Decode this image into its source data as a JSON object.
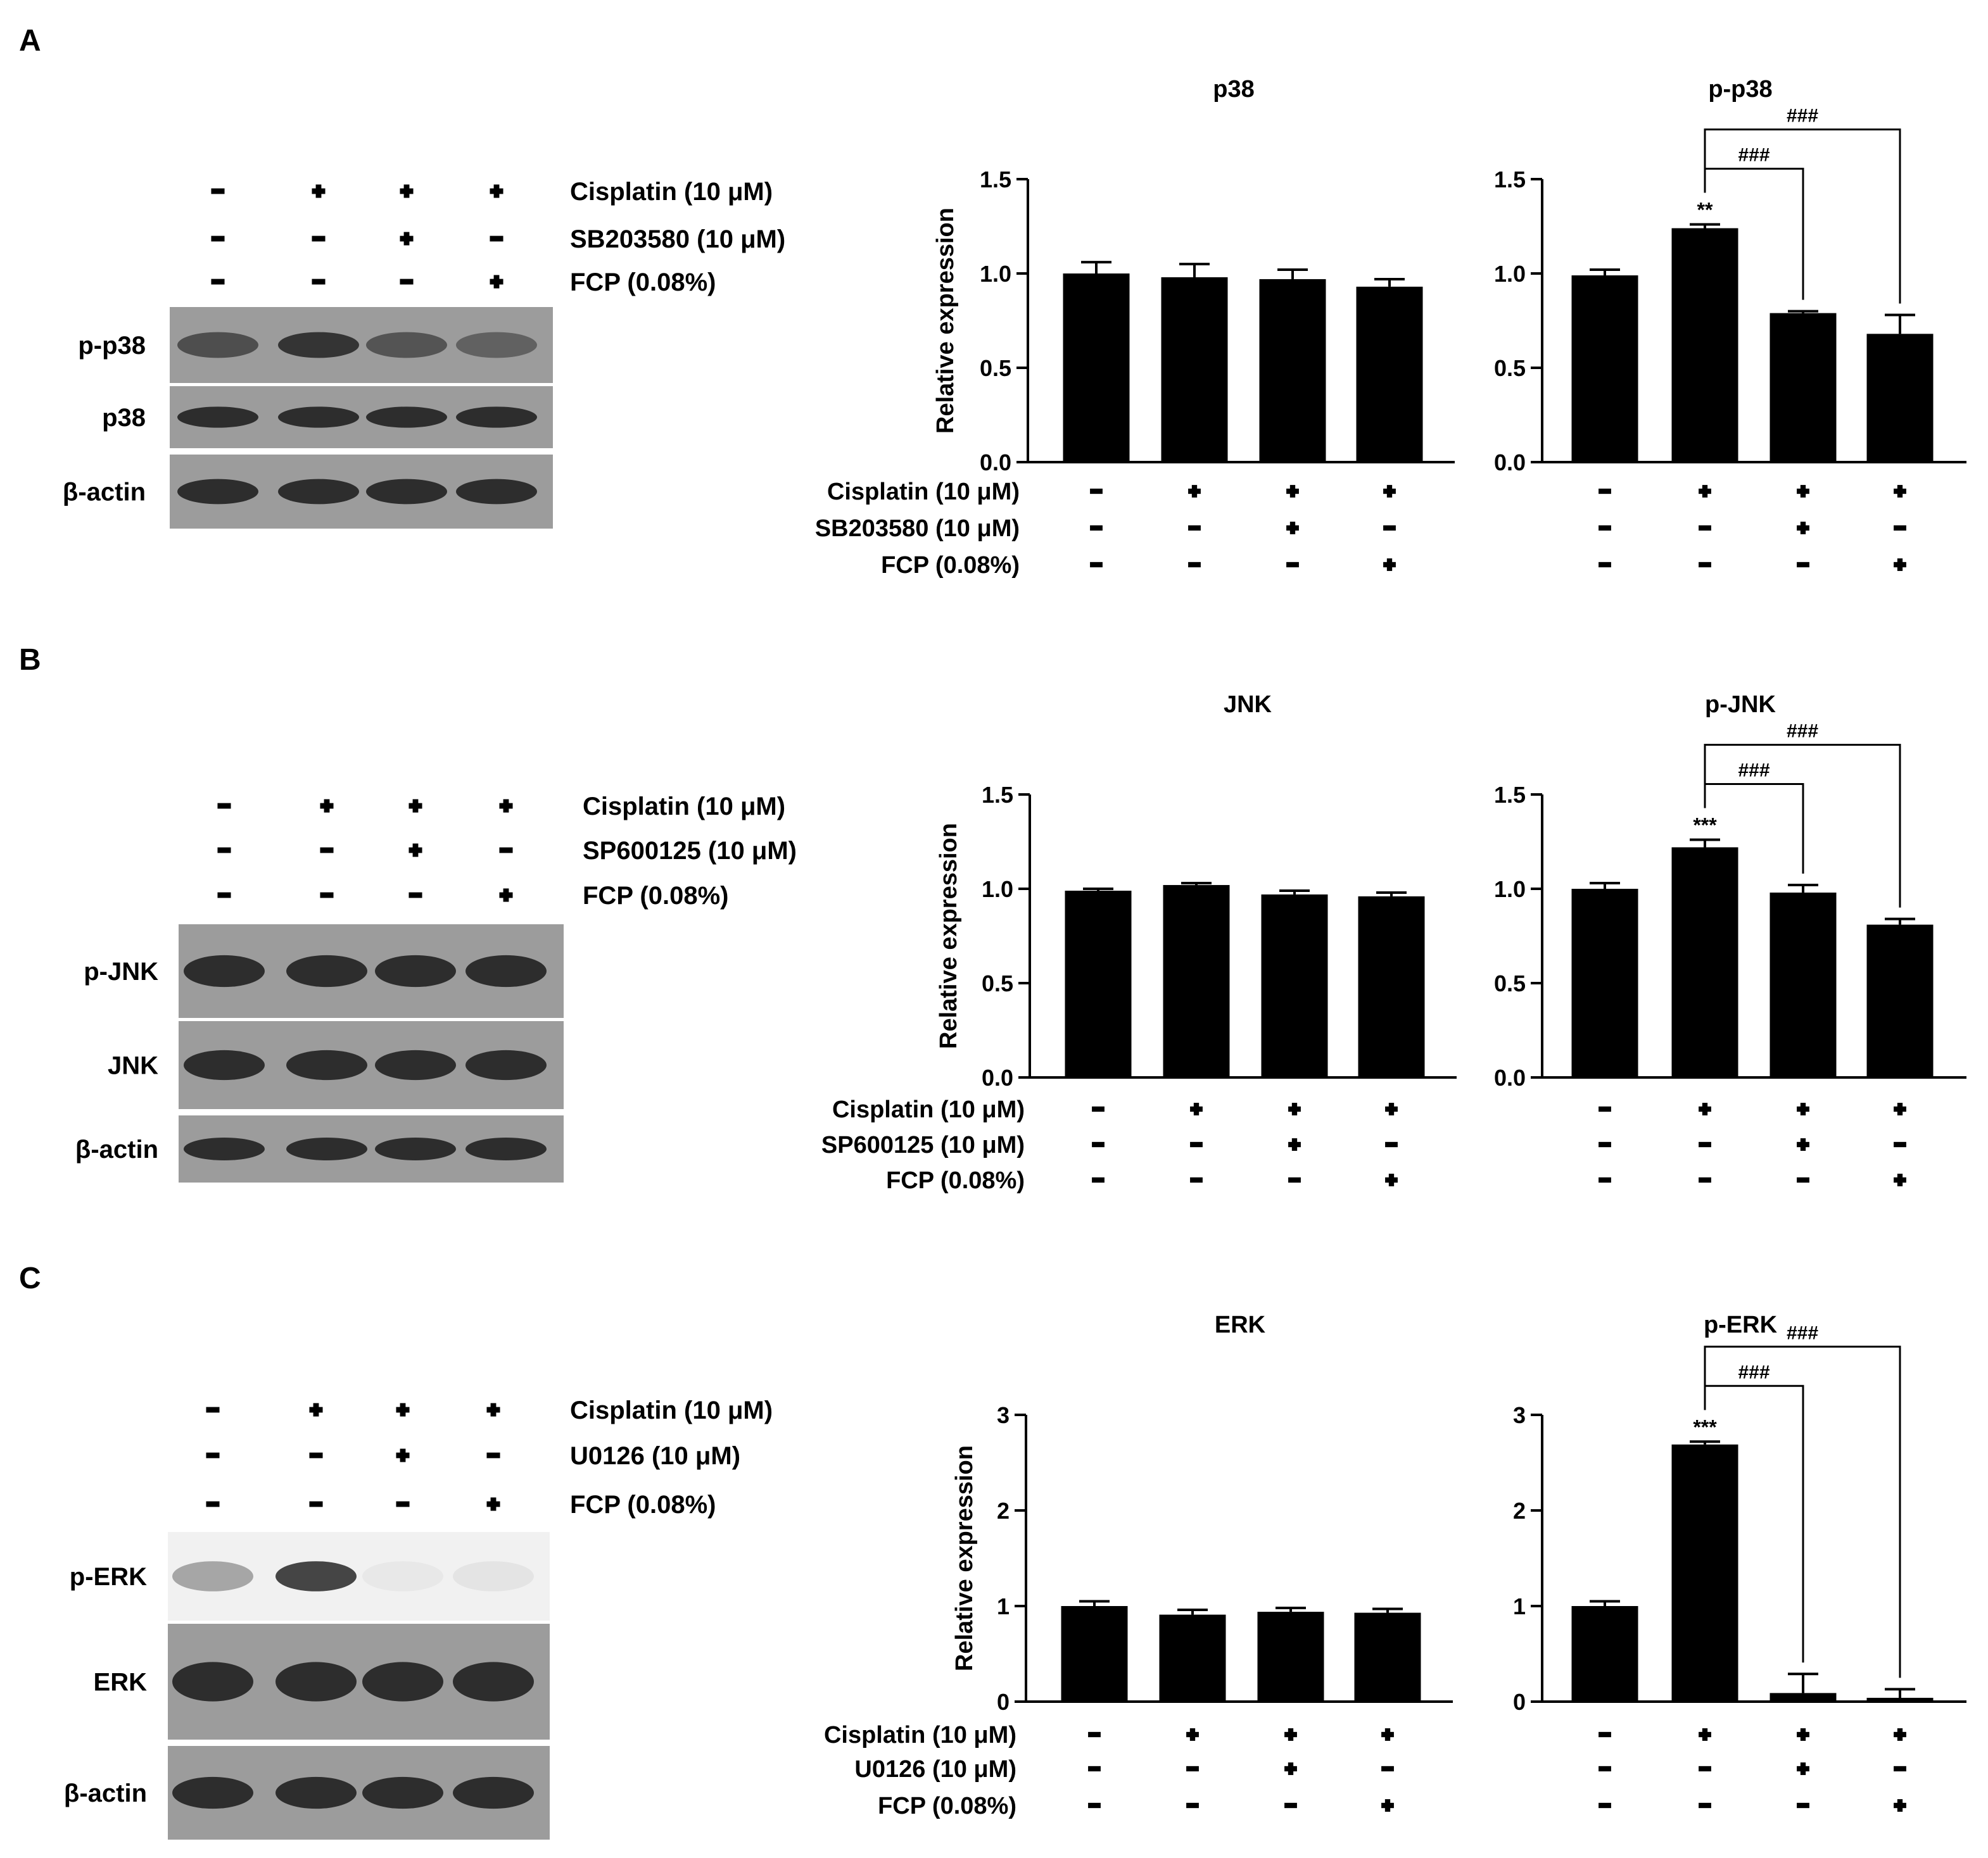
{
  "panels": [
    {
      "letter": "A",
      "blot_labels": [
        "p-p38",
        "p38",
        "β-actin"
      ],
      "treatments": [
        {
          "label": "Cisplatin (10 μM)",
          "signs": [
            "−",
            "+",
            "+",
            "+"
          ]
        },
        {
          "label": "SB203580 (10 μM)",
          "signs": [
            "−",
            "−",
            "+",
            "−"
          ]
        },
        {
          "label": "FCP (0.08%)",
          "signs": [
            "−",
            "−",
            "−",
            "+"
          ]
        }
      ]
    },
    {
      "letter": "B",
      "blot_labels": [
        "p-JNK",
        "JNK",
        "β-actin"
      ],
      "treatments": [
        {
          "label": "Cisplatin (10 μM)",
          "signs": [
            "−",
            "+",
            "+",
            "+"
          ]
        },
        {
          "label": "SP600125 (10 μM)",
          "signs": [
            "−",
            "−",
            "+",
            "−"
          ]
        },
        {
          "label": "FCP (0.08%)",
          "signs": [
            "−",
            "−",
            "−",
            "+"
          ]
        }
      ]
    },
    {
      "letter": "C",
      "blot_labels": [
        "p-ERK",
        "ERK",
        "β-actin"
      ],
      "treatments": [
        {
          "label": "Cisplatin (10 μM)",
          "signs": [
            "−",
            "+",
            "+",
            "+"
          ]
        },
        {
          "label": "U0126 (10 μM)",
          "signs": [
            "−",
            "−",
            "+",
            "−"
          ]
        },
        {
          "label": "FCP (0.08%)",
          "signs": [
            "−",
            "−",
            "−",
            "+"
          ]
        }
      ]
    }
  ],
  "chart_data": [
    {
      "type": "bar",
      "panel": "A",
      "title": "p38",
      "ylabel": "Relative expression",
      "ylim": [
        0,
        1.5
      ],
      "yticks": [
        "0.0",
        "0.5",
        "1.0",
        "1.5"
      ],
      "values": [
        1.0,
        0.98,
        0.97,
        0.93
      ],
      "errors": [
        0.06,
        0.07,
        0.05,
        0.04
      ],
      "sig": [
        "",
        "",
        "",
        ""
      ],
      "brackets": []
    },
    {
      "type": "bar",
      "panel": "A",
      "title": "p-p38",
      "ylabel": "",
      "ylim": [
        0,
        1.5
      ],
      "yticks": [
        "0.0",
        "0.5",
        "1.0",
        "1.5"
      ],
      "values": [
        0.99,
        1.24,
        0.79,
        0.68
      ],
      "errors": [
        0.03,
        0.02,
        0.01,
        0.1
      ],
      "sig": [
        "",
        "**",
        "",
        ""
      ],
      "brackets": [
        "###",
        "###"
      ]
    },
    {
      "type": "bar",
      "panel": "B",
      "title": "JNK",
      "ylabel": "Relative expression",
      "ylim": [
        0,
        1.5
      ],
      "yticks": [
        "0.0",
        "0.5",
        "1.0",
        "1.5"
      ],
      "values": [
        0.99,
        1.02,
        0.97,
        0.96
      ],
      "errors": [
        0.01,
        0.01,
        0.02,
        0.02
      ],
      "sig": [
        "",
        "",
        "",
        ""
      ],
      "brackets": []
    },
    {
      "type": "bar",
      "panel": "B",
      "title": "p-JNK",
      "ylabel": "",
      "ylim": [
        0,
        1.5
      ],
      "yticks": [
        "0.0",
        "0.5",
        "1.0",
        "1.5"
      ],
      "values": [
        1.0,
        1.22,
        0.98,
        0.81
      ],
      "errors": [
        0.03,
        0.04,
        0.04,
        0.03
      ],
      "sig": [
        "",
        "***",
        "",
        ""
      ],
      "brackets": [
        "###",
        "###"
      ]
    },
    {
      "type": "bar",
      "panel": "C",
      "title": "ERK",
      "ylabel": "Relative expression",
      "ylim": [
        0,
        3
      ],
      "yticks": [
        "0",
        "1",
        "2",
        "3"
      ],
      "values": [
        1.0,
        0.91,
        0.94,
        0.93
      ],
      "errors": [
        0.05,
        0.05,
        0.04,
        0.04
      ],
      "sig": [
        "",
        "",
        "",
        ""
      ],
      "brackets": []
    },
    {
      "type": "bar",
      "panel": "C",
      "title": "p-ERK",
      "ylabel": "",
      "ylim": [
        0,
        3
      ],
      "yticks": [
        "0",
        "1",
        "2",
        "3"
      ],
      "values": [
        1.0,
        2.69,
        0.09,
        0.04
      ],
      "errors": [
        0.05,
        0.03,
        0.2,
        0.09
      ],
      "sig": [
        "",
        "***",
        "",
        ""
      ],
      "brackets": [
        "###",
        "###"
      ]
    }
  ]
}
